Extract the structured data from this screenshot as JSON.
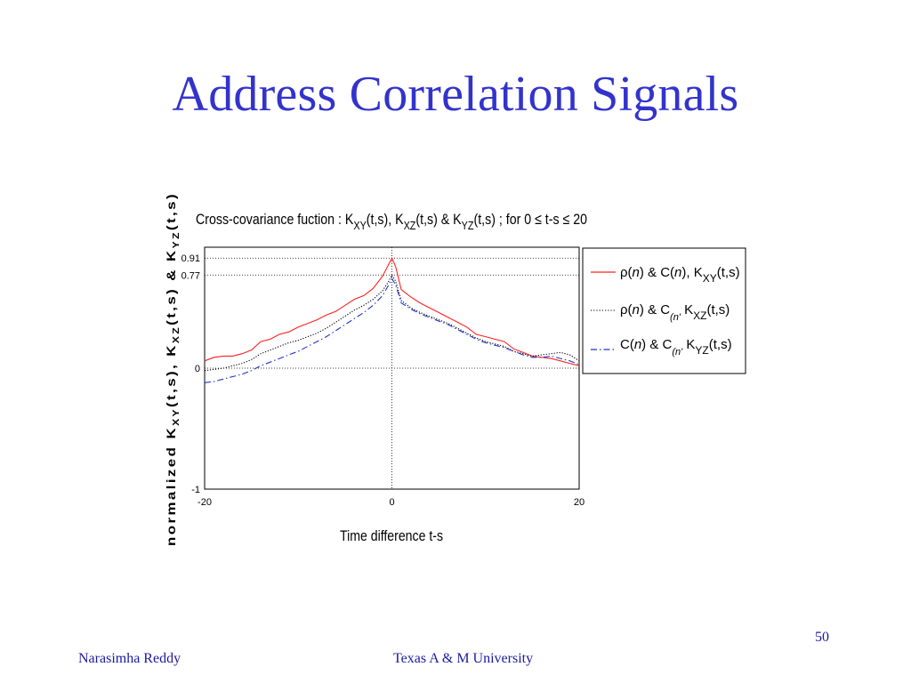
{
  "slide": {
    "title": "Address Correlation Signals",
    "page_number": "50",
    "footer_left": "Narasimha Reddy",
    "footer_center": "Texas A & M University"
  },
  "chart_data": {
    "type": "line",
    "title": "Cross-covariance fuction : K_XY(t,s), K_XZ(t,s) & K_YZ(t,s) ; for 0 ≤ t-s ≤ 20",
    "xlabel": "Time difference t-s",
    "ylabel": "normalized K_XY(t,s), K_XZ(t,s) & K_YZ(t,s)",
    "xlim": [
      -20,
      20
    ],
    "ylim": [
      -1,
      1
    ],
    "x_ticks": [
      -20,
      0,
      20
    ],
    "y_ticks": [
      -1,
      0,
      0.77,
      0.91
    ],
    "reference_lines": {
      "horizontal": [
        0,
        0.77,
        0.91
      ],
      "vertical": [
        0
      ]
    },
    "grid": false,
    "legend_position": "right",
    "series": [
      {
        "name": "ρ(n) & C(n), K_XY(t,s)",
        "color": "#ff2020",
        "style": "solid",
        "points": [
          [
            -20,
            0.06
          ],
          [
            -19,
            0.09
          ],
          [
            -18,
            0.1
          ],
          [
            -17,
            0.1
          ],
          [
            -16,
            0.12
          ],
          [
            -15,
            0.15
          ],
          [
            -14,
            0.22
          ],
          [
            -13,
            0.24
          ],
          [
            -12,
            0.28
          ],
          [
            -11,
            0.3
          ],
          [
            -10,
            0.34
          ],
          [
            -9,
            0.37
          ],
          [
            -8,
            0.4
          ],
          [
            -7,
            0.44
          ],
          [
            -6,
            0.47
          ],
          [
            -5,
            0.52
          ],
          [
            -4,
            0.57
          ],
          [
            -3,
            0.6
          ],
          [
            -2,
            0.66
          ],
          [
            -1,
            0.76
          ],
          [
            -0.4,
            0.85
          ],
          [
            0,
            0.91
          ],
          [
            0.4,
            0.84
          ],
          [
            1,
            0.65
          ],
          [
            2,
            0.59
          ],
          [
            3,
            0.54
          ],
          [
            4,
            0.5
          ],
          [
            5,
            0.46
          ],
          [
            6,
            0.42
          ],
          [
            7,
            0.38
          ],
          [
            8,
            0.34
          ],
          [
            9,
            0.28
          ],
          [
            10,
            0.26
          ],
          [
            11,
            0.24
          ],
          [
            12,
            0.22
          ],
          [
            13,
            0.16
          ],
          [
            14,
            0.13
          ],
          [
            15,
            0.1
          ],
          [
            16,
            0.09
          ],
          [
            17,
            0.08
          ],
          [
            18,
            0.06
          ],
          [
            19,
            0.04
          ],
          [
            20,
            0.02
          ]
        ]
      },
      {
        "name": "ρ(n) & C_(n'), K_XZ(t,s)",
        "color": "#000000",
        "style": "dotted",
        "points": [
          [
            -20,
            -0.02
          ],
          [
            -19,
            -0.01
          ],
          [
            -18,
            0.0
          ],
          [
            -17,
            0.02
          ],
          [
            -16,
            0.04
          ],
          [
            -15,
            0.07
          ],
          [
            -14,
            0.12
          ],
          [
            -13,
            0.15
          ],
          [
            -12,
            0.18
          ],
          [
            -11,
            0.21
          ],
          [
            -10,
            0.23
          ],
          [
            -9,
            0.26
          ],
          [
            -8,
            0.29
          ],
          [
            -7,
            0.33
          ],
          [
            -6,
            0.38
          ],
          [
            -5,
            0.43
          ],
          [
            -4,
            0.48
          ],
          [
            -3,
            0.52
          ],
          [
            -2,
            0.57
          ],
          [
            -1,
            0.64
          ],
          [
            -0.4,
            0.71
          ],
          [
            0,
            0.77
          ],
          [
            0.4,
            0.72
          ],
          [
            1,
            0.56
          ],
          [
            2,
            0.5
          ],
          [
            3,
            0.46
          ],
          [
            4,
            0.43
          ],
          [
            5,
            0.4
          ],
          [
            6,
            0.37
          ],
          [
            7,
            0.33
          ],
          [
            8,
            0.29
          ],
          [
            9,
            0.25
          ],
          [
            10,
            0.22
          ],
          [
            11,
            0.2
          ],
          [
            12,
            0.18
          ],
          [
            13,
            0.14
          ],
          [
            14,
            0.12
          ],
          [
            15,
            0.1
          ],
          [
            16,
            0.11
          ],
          [
            17,
            0.12
          ],
          [
            18,
            0.13
          ],
          [
            19,
            0.11
          ],
          [
            20,
            0.06
          ]
        ]
      },
      {
        "name": "C(n) & C_(n'), K_YZ(t,s)",
        "color": "#2233cc",
        "style": "dashdot",
        "points": [
          [
            -20,
            -0.12
          ],
          [
            -19,
            -0.11
          ],
          [
            -18,
            -0.09
          ],
          [
            -17,
            -0.07
          ],
          [
            -16,
            -0.05
          ],
          [
            -15,
            -0.02
          ],
          [
            -14,
            0.02
          ],
          [
            -13,
            0.05
          ],
          [
            -12,
            0.08
          ],
          [
            -11,
            0.11
          ],
          [
            -10,
            0.14
          ],
          [
            -9,
            0.18
          ],
          [
            -8,
            0.22
          ],
          [
            -7,
            0.26
          ],
          [
            -6,
            0.31
          ],
          [
            -5,
            0.36
          ],
          [
            -4,
            0.41
          ],
          [
            -3,
            0.46
          ],
          [
            -2,
            0.52
          ],
          [
            -1,
            0.6
          ],
          [
            -0.4,
            0.68
          ],
          [
            0,
            0.74
          ],
          [
            0.4,
            0.69
          ],
          [
            1,
            0.54
          ],
          [
            2,
            0.49
          ],
          [
            3,
            0.45
          ],
          [
            4,
            0.42
          ],
          [
            5,
            0.39
          ],
          [
            6,
            0.36
          ],
          [
            7,
            0.32
          ],
          [
            8,
            0.28
          ],
          [
            9,
            0.24
          ],
          [
            10,
            0.21
          ],
          [
            11,
            0.19
          ],
          [
            12,
            0.17
          ],
          [
            13,
            0.14
          ],
          [
            14,
            0.11
          ],
          [
            15,
            0.09
          ],
          [
            16,
            0.09
          ],
          [
            17,
            0.1
          ],
          [
            18,
            0.08
          ],
          [
            19,
            0.06
          ],
          [
            20,
            0.03
          ]
        ]
      }
    ]
  }
}
